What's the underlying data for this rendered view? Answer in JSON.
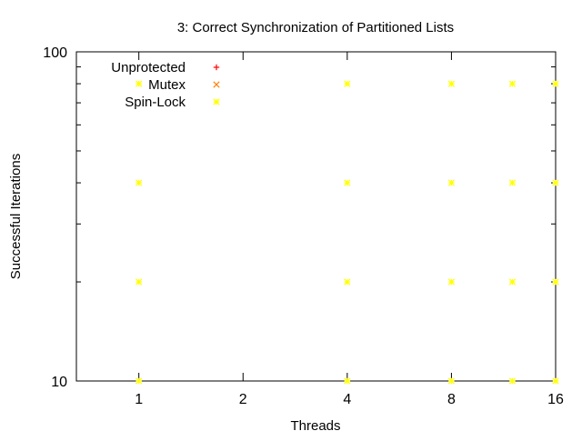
{
  "chart_data": {
    "type": "scatter",
    "title": "3: Correct Synchronization of Partitioned Lists",
    "xlabel": "Threads",
    "ylabel": "Successful Iterations",
    "x_scale": "log2",
    "y_scale": "log10",
    "xlim": [
      0.66,
      16
    ],
    "ylim": [
      10,
      100
    ],
    "x_ticks": [
      1,
      2,
      4,
      8,
      16
    ],
    "y_ticks": [
      10,
      100
    ],
    "grid": false,
    "legend_position": "top-left",
    "series": [
      {
        "name": "Unprotected",
        "marker": "plus",
        "color": "#ff0000",
        "points": []
      },
      {
        "name": "Mutex",
        "marker": "cross",
        "color": "#ff8000",
        "points": []
      },
      {
        "name": "Spin-Lock",
        "marker": "star",
        "color": "#ffff00",
        "points": [
          [
            1,
            10
          ],
          [
            1,
            20
          ],
          [
            1,
            40
          ],
          [
            1,
            80
          ],
          [
            4,
            10
          ],
          [
            4,
            20
          ],
          [
            4,
            40
          ],
          [
            4,
            80
          ],
          [
            8,
            10
          ],
          [
            8,
            20
          ],
          [
            8,
            40
          ],
          [
            8,
            80
          ],
          [
            12,
            10
          ],
          [
            12,
            20
          ],
          [
            12,
            40
          ],
          [
            12,
            80
          ],
          [
            16,
            10
          ],
          [
            16,
            20
          ],
          [
            16,
            40
          ],
          [
            16,
            80
          ]
        ]
      }
    ]
  }
}
